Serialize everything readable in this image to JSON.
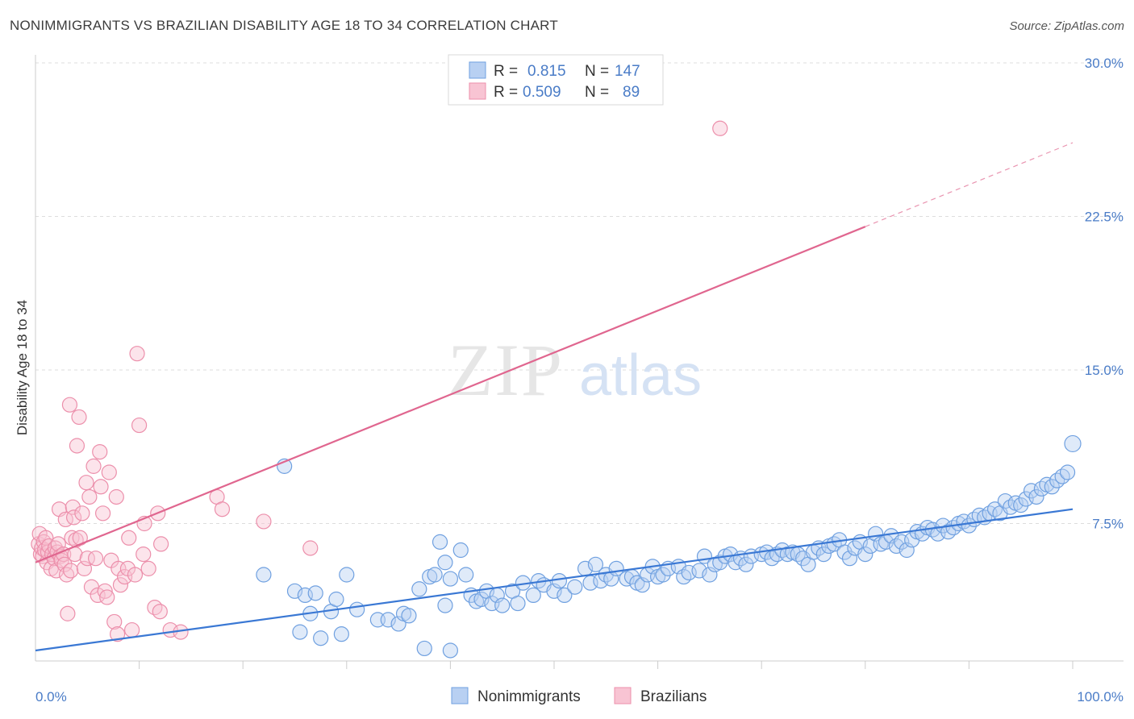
{
  "title": "NONIMMIGRANTS VS BRAZILIAN DISABILITY AGE 18 TO 34 CORRELATION CHART",
  "source": "Source: ZipAtlas.com",
  "watermark": {
    "zip": "ZIP",
    "atlas": "atlas"
  },
  "colors": {
    "blue": "#6fa0e0",
    "blue_fill": "#b8d0f2",
    "blue_line": "#3a78d4",
    "pink": "#ec8fab",
    "pink_fill": "#f8c4d3",
    "pink_line": "#e0668f",
    "axis_text": "#4a7cc7",
    "grid": "#dddddd"
  },
  "legend_top": [
    {
      "r_label": "R =",
      "r_value": "0.815",
      "n_label": "N =",
      "n_value": "147",
      "swatch": "blue"
    },
    {
      "r_label": "R =",
      "r_value": "0.509",
      "n_label": "N =",
      "n_value": "89",
      "swatch": "pink"
    }
  ],
  "legend_bottom": [
    {
      "label": "Nonimmigrants",
      "swatch": "blue"
    },
    {
      "label": "Brazilians",
      "swatch": "pink"
    }
  ],
  "chart_data": {
    "type": "scatter",
    "title": "NONIMMIGRANTS VS BRAZILIAN DISABILITY AGE 18 TO 34 CORRELATION CHART",
    "xlabel": "",
    "ylabel": "Disability Age 18 to 34",
    "xlim": [
      0,
      100
    ],
    "ylim": [
      0,
      30
    ],
    "x_tick_labels": [
      "0.0%",
      "100.0%"
    ],
    "y_ticks": [
      7.5,
      15.0,
      22.5,
      30.0
    ],
    "y_tick_labels": [
      "7.5%",
      "15.0%",
      "22.5%",
      "30.0%"
    ],
    "grid": "horizontal dashed",
    "legend": "top-center",
    "series": [
      {
        "name": "Nonimmigrants",
        "color": "blue",
        "trend": {
          "x": [
            0,
            100
          ],
          "y": [
            1.3,
            8.2
          ]
        },
        "points": [
          [
            22,
            5.0
          ],
          [
            24,
            10.3
          ],
          [
            25,
            4.2
          ],
          [
            25.5,
            2.2
          ],
          [
            26,
            4.0
          ],
          [
            26.5,
            3.1
          ],
          [
            27,
            4.1
          ],
          [
            27.5,
            1.9
          ],
          [
            28.5,
            3.2
          ],
          [
            29,
            3.8
          ],
          [
            29.5,
            2.1
          ],
          [
            30,
            5.0
          ],
          [
            31,
            3.3
          ],
          [
            33,
            2.8
          ],
          [
            34,
            2.8
          ],
          [
            35,
            2.6
          ],
          [
            35.5,
            3.1
          ],
          [
            36,
            3.0
          ],
          [
            37,
            4.3
          ],
          [
            37.5,
            1.4
          ],
          [
            38,
            4.9
          ],
          [
            38.5,
            5.0
          ],
          [
            39,
            6.6
          ],
          [
            39.5,
            3.5
          ],
          [
            39.5,
            5.6
          ],
          [
            40,
            1.3
          ],
          [
            40,
            4.8
          ],
          [
            41,
            6.2
          ],
          [
            41.5,
            5.0
          ],
          [
            42,
            4.0
          ],
          [
            42.5,
            3.7
          ],
          [
            43,
            3.8
          ],
          [
            43.5,
            4.2
          ],
          [
            44,
            3.6
          ],
          [
            44.5,
            4.0
          ],
          [
            45,
            3.5
          ],
          [
            46,
            4.2
          ],
          [
            46.5,
            3.6
          ],
          [
            47,
            4.6
          ],
          [
            48,
            4.0
          ],
          [
            48.5,
            4.7
          ],
          [
            49,
            4.5
          ],
          [
            50,
            4.2
          ],
          [
            50.5,
            4.7
          ],
          [
            51,
            4.0
          ],
          [
            52,
            4.4
          ],
          [
            53,
            5.3
          ],
          [
            53.5,
            4.6
          ],
          [
            54,
            5.5
          ],
          [
            54.5,
            4.7
          ],
          [
            55,
            5.0
          ],
          [
            55.5,
            4.8
          ],
          [
            56,
            5.3
          ],
          [
            57,
            4.8
          ],
          [
            57.5,
            4.9
          ],
          [
            58,
            4.6
          ],
          [
            58.5,
            4.5
          ],
          [
            59,
            5.0
          ],
          [
            59.5,
            5.4
          ],
          [
            60,
            4.9
          ],
          [
            60.5,
            5.0
          ],
          [
            61,
            5.3
          ],
          [
            62,
            5.4
          ],
          [
            62.5,
            4.9
          ],
          [
            63,
            5.1
          ],
          [
            64,
            5.2
          ],
          [
            64.5,
            5.9
          ],
          [
            65,
            5.0
          ],
          [
            65.5,
            5.5
          ],
          [
            66,
            5.6
          ],
          [
            66.5,
            5.9
          ],
          [
            67,
            6.0
          ],
          [
            67.5,
            5.6
          ],
          [
            68,
            5.8
          ],
          [
            68.5,
            5.5
          ],
          [
            69,
            5.9
          ],
          [
            70,
            6.0
          ],
          [
            70.5,
            6.1
          ],
          [
            71,
            5.8
          ],
          [
            71.5,
            6.0
          ],
          [
            72,
            6.2
          ],
          [
            72.5,
            6.0
          ],
          [
            73,
            6.1
          ],
          [
            73.5,
            6.0
          ],
          [
            74,
            5.8
          ],
          [
            74.5,
            5.5
          ],
          [
            75,
            6.1
          ],
          [
            75.5,
            6.3
          ],
          [
            76,
            6.0
          ],
          [
            76.5,
            6.4
          ],
          [
            77,
            6.5
          ],
          [
            77.5,
            6.7
          ],
          [
            78,
            6.1
          ],
          [
            78.5,
            5.8
          ],
          [
            79,
            6.3
          ],
          [
            79.5,
            6.6
          ],
          [
            80,
            6.0
          ],
          [
            80.5,
            6.4
          ],
          [
            81,
            7.0
          ],
          [
            81.5,
            6.5
          ],
          [
            82,
            6.6
          ],
          [
            82.5,
            6.9
          ],
          [
            83,
            6.4
          ],
          [
            83.5,
            6.6
          ],
          [
            84,
            6.2
          ],
          [
            84.5,
            6.7
          ],
          [
            85,
            7.1
          ],
          [
            85.5,
            7.0
          ],
          [
            86,
            7.3
          ],
          [
            86.5,
            7.2
          ],
          [
            87,
            7.0
          ],
          [
            87.5,
            7.4
          ],
          [
            88,
            7.1
          ],
          [
            88.5,
            7.3
          ],
          [
            89,
            7.5
          ],
          [
            89.5,
            7.6
          ],
          [
            90,
            7.4
          ],
          [
            90.5,
            7.7
          ],
          [
            91,
            7.9
          ],
          [
            91.5,
            7.8
          ],
          [
            92,
            8.0
          ],
          [
            92.5,
            8.2
          ],
          [
            93,
            8.0
          ],
          [
            93.5,
            8.6
          ],
          [
            94,
            8.3
          ],
          [
            94.5,
            8.5
          ],
          [
            95,
            8.4
          ],
          [
            95.5,
            8.7
          ],
          [
            96,
            9.1
          ],
          [
            96.5,
            8.8
          ],
          [
            97,
            9.2
          ],
          [
            97.5,
            9.4
          ],
          [
            98,
            9.3
          ],
          [
            98.5,
            9.6
          ],
          [
            99,
            9.8
          ],
          [
            99.5,
            10.0
          ],
          [
            100,
            11.4
          ]
        ]
      },
      {
        "name": "Brazilians",
        "color": "pink",
        "trend": {
          "x": [
            0,
            80
          ],
          "y": [
            5.6,
            22.0
          ]
        },
        "trend_extension": {
          "x": [
            80,
            100
          ],
          "y": [
            22.0,
            26.1
          ]
        },
        "points": [
          [
            0.3,
            6.5
          ],
          [
            0.4,
            7.0
          ],
          [
            0.5,
            6.0
          ],
          [
            0.6,
            6.3
          ],
          [
            0.7,
            5.9
          ],
          [
            0.8,
            6.6
          ],
          [
            0.9,
            6.2
          ],
          [
            1.0,
            6.8
          ],
          [
            1.1,
            5.6
          ],
          [
            1.2,
            6.1
          ],
          [
            1.3,
            6.4
          ],
          [
            1.5,
            5.3
          ],
          [
            1.6,
            6.0
          ],
          [
            1.8,
            5.8
          ],
          [
            1.9,
            6.3
          ],
          [
            2.0,
            5.2
          ],
          [
            2.1,
            6.1
          ],
          [
            2.2,
            6.5
          ],
          [
            2.3,
            8.2
          ],
          [
            2.4,
            5.9
          ],
          [
            2.5,
            5.7
          ],
          [
            2.7,
            6.0
          ],
          [
            2.8,
            5.5
          ],
          [
            2.9,
            7.7
          ],
          [
            3.0,
            5.0
          ],
          [
            3.1,
            3.1
          ],
          [
            3.3,
            13.3
          ],
          [
            3.4,
            5.2
          ],
          [
            3.5,
            6.8
          ],
          [
            3.6,
            8.3
          ],
          [
            3.7,
            7.8
          ],
          [
            3.8,
            6.0
          ],
          [
            3.9,
            6.7
          ],
          [
            4.0,
            11.3
          ],
          [
            4.2,
            12.7
          ],
          [
            4.3,
            6.8
          ],
          [
            4.5,
            8.0
          ],
          [
            4.7,
            5.3
          ],
          [
            4.9,
            9.5
          ],
          [
            5.0,
            5.8
          ],
          [
            5.2,
            8.8
          ],
          [
            5.4,
            4.4
          ],
          [
            5.6,
            10.3
          ],
          [
            5.8,
            5.8
          ],
          [
            6.0,
            4.0
          ],
          [
            6.2,
            11.0
          ],
          [
            6.3,
            9.3
          ],
          [
            6.5,
            8.0
          ],
          [
            6.7,
            4.2
          ],
          [
            6.9,
            3.9
          ],
          [
            7.1,
            10.0
          ],
          [
            7.3,
            5.7
          ],
          [
            7.6,
            2.7
          ],
          [
            7.8,
            8.8
          ],
          [
            7.9,
            2.1
          ],
          [
            8.0,
            5.3
          ],
          [
            8.2,
            4.5
          ],
          [
            8.6,
            4.9
          ],
          [
            8.9,
            5.3
          ],
          [
            9.0,
            6.8
          ],
          [
            9.3,
            2.3
          ],
          [
            9.6,
            5.0
          ],
          [
            9.8,
            15.8
          ],
          [
            10.0,
            12.3
          ],
          [
            10.4,
            6.0
          ],
          [
            10.5,
            7.5
          ],
          [
            10.9,
            5.3
          ],
          [
            11.8,
            8.0
          ],
          [
            11.5,
            3.4
          ],
          [
            12.0,
            3.2
          ],
          [
            12.1,
            6.5
          ],
          [
            13.0,
            2.3
          ],
          [
            14.0,
            2.2
          ],
          [
            17.5,
            8.8
          ],
          [
            18.0,
            8.2
          ],
          [
            22.0,
            7.6
          ],
          [
            26.5,
            6.3
          ],
          [
            66.0,
            26.8
          ]
        ]
      }
    ]
  }
}
